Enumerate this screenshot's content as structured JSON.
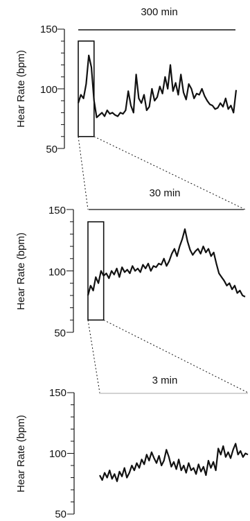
{
  "chart_data": [
    {
      "type": "line",
      "duration_label": "300 min",
      "ylabel": "Hear Rate (bpm)",
      "ylim": [
        50,
        150
      ],
      "yticks": [
        "150",
        "100",
        "50"
      ],
      "grid": false,
      "x": [
        0,
        5,
        10,
        15,
        20,
        25,
        30,
        35,
        40,
        45,
        50,
        55,
        60,
        65,
        70,
        75,
        80,
        85,
        90,
        95,
        100,
        105,
        110,
        115,
        120,
        125,
        130,
        135,
        140,
        145,
        150,
        155,
        160,
        165,
        170,
        175,
        180,
        185,
        190,
        195,
        200,
        205,
        210,
        215,
        220,
        225,
        230,
        235,
        240,
        245,
        250,
        255,
        260,
        265,
        270,
        275,
        280,
        285,
        290,
        295,
        300
      ],
      "series": [
        {
          "values": [
            88,
            95,
            92,
            104,
            128,
            118,
            90,
            76,
            78,
            80,
            77,
            82,
            79,
            80,
            78,
            77,
            80,
            79,
            82,
            98,
            86,
            80,
            112,
            92,
            88,
            95,
            82,
            85,
            100,
            90,
            93,
            102,
            96,
            110,
            100,
            120,
            98,
            105,
            95,
            112,
            97,
            91,
            104,
            100,
            92,
            96,
            95,
            100,
            94,
            90,
            87,
            86,
            83,
            84,
            88,
            85,
            92,
            83,
            86,
            80,
            99
          ]
        }
      ],
      "highlight_window": {
        "x": [
          0,
          30
        ],
        "y": [
          60,
          140
        ]
      }
    },
    {
      "type": "line",
      "duration_label": "30 min",
      "ylabel": "Hear Rate (bpm)",
      "ylim": [
        50,
        150
      ],
      "yticks": [
        "150",
        "100",
        "50"
      ],
      "grid": false,
      "x": [
        0,
        0.5,
        1,
        1.5,
        2,
        2.5,
        3,
        3.5,
        4,
        4.5,
        5,
        5.5,
        6,
        6.5,
        7,
        7.5,
        8,
        8.5,
        9,
        9.5,
        10,
        10.5,
        11,
        11.5,
        12,
        12.5,
        13,
        13.5,
        14,
        14.5,
        15,
        15.5,
        16,
        16.5,
        17,
        17.5,
        18,
        18.5,
        19,
        19.5,
        20,
        20.5,
        21,
        21.5,
        22,
        22.5,
        23,
        23.5,
        24,
        24.5,
        25,
        25.5,
        26,
        26.5,
        27,
        27.5,
        28,
        28.5,
        29,
        29.5,
        30
      ],
      "series": [
        {
          "values": [
            80,
            88,
            84,
            95,
            90,
            100,
            96,
            98,
            94,
            100,
            97,
            102,
            95,
            103,
            99,
            101,
            98,
            104,
            100,
            102,
            99,
            105,
            102,
            106,
            100,
            104,
            103,
            106,
            105,
            110,
            104,
            108,
            114,
            118,
            112,
            120,
            126,
            134,
            124,
            117,
            113,
            116,
            118,
            114,
            120,
            115,
            118,
            112,
            115,
            106,
            98,
            95,
            92,
            88,
            90,
            85,
            88,
            82,
            84,
            80,
            79
          ]
        }
      ],
      "highlight_window": {
        "x": [
          0,
          3
        ],
        "y": [
          60,
          140
        ]
      }
    },
    {
      "type": "line",
      "duration_label": "3 min",
      "ylabel": "Hear Rate (bpm)",
      "ylim": [
        50,
        150
      ],
      "yticks": [
        "150",
        "100",
        "50"
      ],
      "grid": false,
      "x": [
        0,
        0.05,
        0.1,
        0.15,
        0.2,
        0.25,
        0.3,
        0.35,
        0.4,
        0.45,
        0.5,
        0.55,
        0.6,
        0.65,
        0.7,
        0.75,
        0.8,
        0.85,
        0.9,
        0.95,
        1,
        1.05,
        1.1,
        1.15,
        1.2,
        1.25,
        1.3,
        1.35,
        1.4,
        1.45,
        1.5,
        1.55,
        1.6,
        1.65,
        1.7,
        1.75,
        1.8,
        1.85,
        1.9,
        1.95,
        2,
        2.05,
        2.1,
        2.15,
        2.2,
        2.25,
        2.3,
        2.35,
        2.4,
        2.45,
        2.5,
        2.55,
        2.6,
        2.65,
        2.7,
        2.75,
        2.8,
        2.85,
        2.9,
        2.95,
        3
      ],
      "series": [
        {
          "values": [
            82,
            78,
            84,
            80,
            86,
            79,
            83,
            77,
            85,
            81,
            88,
            80,
            84,
            90,
            86,
            92,
            88,
            95,
            91,
            99,
            94,
            101,
            96,
            92,
            98,
            90,
            94,
            103,
            97,
            89,
            93,
            87,
            95,
            86,
            90,
            84,
            92,
            86,
            88,
            83,
            91,
            85,
            89,
            82,
            94,
            88,
            93,
            86,
            104,
            99,
            106,
            97,
            101,
            96,
            103,
            108,
            99,
            102,
            97,
            100,
            99
          ]
        }
      ]
    }
  ]
}
